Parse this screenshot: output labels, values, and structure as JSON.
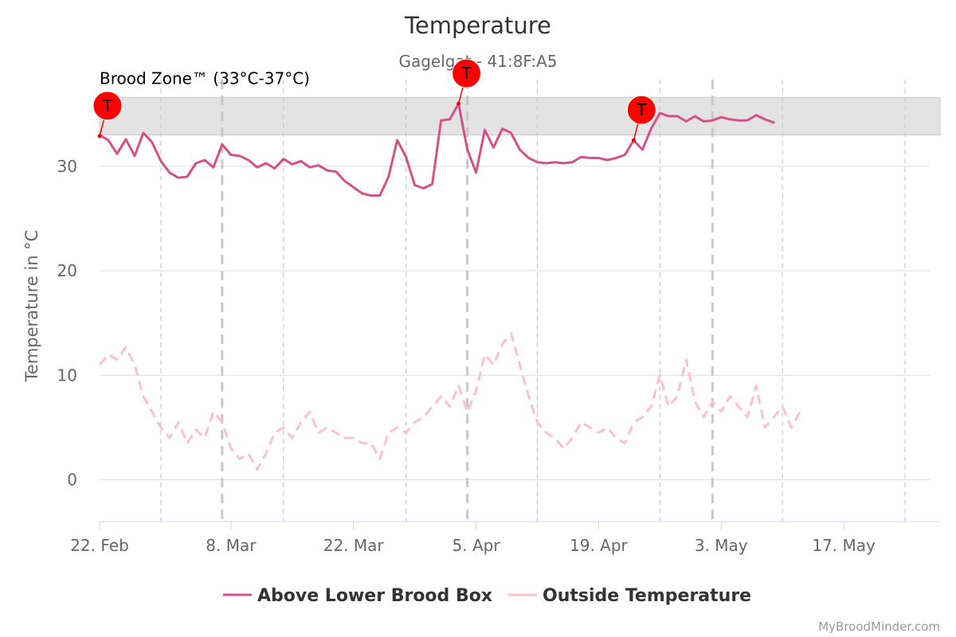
{
  "chart_data": {
    "type": "line",
    "title": "Temperature",
    "subtitle": "Gagelgat - 41:8F:A5",
    "ylabel": "Temperature in °C",
    "ylim": [
      -4,
      38.3
    ],
    "xlim": [
      "2024-02-22",
      "2024-05-28"
    ],
    "y_ticks": [
      0,
      10,
      20,
      30
    ],
    "x_ticks": [
      {
        "date": "2024-02-22",
        "label": "22. Feb"
      },
      {
        "date": "2024-03-08",
        "label": "8. Mar"
      },
      {
        "date": "2024-03-22",
        "label": "22. Mar"
      },
      {
        "date": "2024-04-05",
        "label": "5. Apr"
      },
      {
        "date": "2024-04-19",
        "label": "19. Apr"
      },
      {
        "date": "2024-05-03",
        "label": "3. May"
      },
      {
        "date": "2024-05-17",
        "label": "17. May"
      }
    ],
    "minor_grid_dates": [
      "2024-02-29",
      "2024-03-14",
      "2024-03-28",
      "2024-04-12",
      "2024-04-26",
      "2024-05-10",
      "2024-05-24"
    ],
    "dashed_grid_dates": [
      "2024-03-07",
      "2024-04-04",
      "2024-05-02"
    ],
    "band": {
      "from": 33,
      "to": 36.6,
      "label": "Brood Zone™ (33°C-37°C)",
      "color": "#e3e3e3"
    },
    "grid": true,
    "legend_position": "bottom-center",
    "series": [
      {
        "name": "Above Lower Brood Box",
        "color": "#d4508a",
        "style": "solid",
        "points": [
          [
            "2024-02-22",
            33.0
          ],
          [
            "2024-02-23",
            32.5
          ],
          [
            "2024-02-24",
            31.2
          ],
          [
            "2024-02-25",
            32.6
          ],
          [
            "2024-02-26",
            31.0
          ],
          [
            "2024-02-27",
            33.2
          ],
          [
            "2024-02-28",
            32.3
          ],
          [
            "2024-02-29",
            30.5
          ],
          [
            "2024-03-01",
            29.4
          ],
          [
            "2024-03-02",
            28.9
          ],
          [
            "2024-03-03",
            29.0
          ],
          [
            "2024-03-04",
            30.3
          ],
          [
            "2024-03-05",
            30.6
          ],
          [
            "2024-03-06",
            29.9
          ],
          [
            "2024-03-07",
            32.1
          ],
          [
            "2024-03-08",
            31.1
          ],
          [
            "2024-03-09",
            31.0
          ],
          [
            "2024-03-10",
            30.6
          ],
          [
            "2024-03-11",
            29.9
          ],
          [
            "2024-03-12",
            30.3
          ],
          [
            "2024-03-13",
            29.8
          ],
          [
            "2024-03-14",
            30.7
          ],
          [
            "2024-03-15",
            30.2
          ],
          [
            "2024-03-16",
            30.5
          ],
          [
            "2024-03-17",
            29.9
          ],
          [
            "2024-03-18",
            30.1
          ],
          [
            "2024-03-19",
            29.6
          ],
          [
            "2024-03-20",
            29.5
          ],
          [
            "2024-03-21",
            28.6
          ],
          [
            "2024-03-22",
            28.0
          ],
          [
            "2024-03-23",
            27.4
          ],
          [
            "2024-03-24",
            27.2
          ],
          [
            "2024-03-25",
            27.2
          ],
          [
            "2024-03-26",
            29.0
          ],
          [
            "2024-03-27",
            32.5
          ],
          [
            "2024-03-28",
            30.9
          ],
          [
            "2024-03-29",
            28.2
          ],
          [
            "2024-03-30",
            27.9
          ],
          [
            "2024-03-31",
            28.3
          ],
          [
            "2024-04-01",
            34.4
          ],
          [
            "2024-04-02",
            34.5
          ],
          [
            "2024-04-03",
            36.0
          ],
          [
            "2024-04-04",
            31.6
          ],
          [
            "2024-04-05",
            29.4
          ],
          [
            "2024-04-06",
            33.5
          ],
          [
            "2024-04-07",
            31.8
          ],
          [
            "2024-04-08",
            33.6
          ],
          [
            "2024-04-09",
            33.2
          ],
          [
            "2024-04-10",
            31.6
          ],
          [
            "2024-04-11",
            30.8
          ],
          [
            "2024-04-12",
            30.4
          ],
          [
            "2024-04-13",
            30.3
          ],
          [
            "2024-04-14",
            30.4
          ],
          [
            "2024-04-15",
            30.3
          ],
          [
            "2024-04-16",
            30.4
          ],
          [
            "2024-04-17",
            30.9
          ],
          [
            "2024-04-18",
            30.8
          ],
          [
            "2024-04-19",
            30.8
          ],
          [
            "2024-04-20",
            30.6
          ],
          [
            "2024-04-21",
            30.8
          ],
          [
            "2024-04-22",
            31.1
          ],
          [
            "2024-04-23",
            32.5
          ],
          [
            "2024-04-24",
            31.6
          ],
          [
            "2024-04-25",
            33.6
          ],
          [
            "2024-04-26",
            35.1
          ],
          [
            "2024-04-27",
            34.8
          ],
          [
            "2024-04-28",
            34.8
          ],
          [
            "2024-04-29",
            34.3
          ],
          [
            "2024-04-30",
            34.8
          ],
          [
            "2024-05-01",
            34.3
          ],
          [
            "2024-05-02",
            34.4
          ],
          [
            "2024-05-03",
            34.7
          ],
          [
            "2024-05-04",
            34.5
          ],
          [
            "2024-05-05",
            34.4
          ],
          [
            "2024-05-06",
            34.4
          ],
          [
            "2024-05-07",
            34.9
          ],
          [
            "2024-05-08",
            34.5
          ],
          [
            "2024-05-09",
            34.2
          ]
        ]
      },
      {
        "name": "Outside Temperature",
        "color": "#ffc0cb",
        "style": "dash",
        "points": [
          [
            "2024-02-22",
            11.0
          ],
          [
            "2024-02-23",
            12.0
          ],
          [
            "2024-02-24",
            11.5
          ],
          [
            "2024-02-25",
            12.7
          ],
          [
            "2024-02-26",
            11.0
          ],
          [
            "2024-02-27",
            8.0
          ],
          [
            "2024-02-28",
            6.5
          ],
          [
            "2024-02-29",
            5.0
          ],
          [
            "2024-03-01",
            4.0
          ],
          [
            "2024-03-02",
            5.5
          ],
          [
            "2024-03-03",
            3.5
          ],
          [
            "2024-03-04",
            4.8
          ],
          [
            "2024-03-05",
            4.0
          ],
          [
            "2024-03-06",
            6.5
          ],
          [
            "2024-03-07",
            5.5
          ],
          [
            "2024-03-08",
            3.0
          ],
          [
            "2024-03-09",
            2.0
          ],
          [
            "2024-03-10",
            2.5
          ],
          [
            "2024-03-11",
            1.0
          ],
          [
            "2024-03-12",
            2.5
          ],
          [
            "2024-03-13",
            4.5
          ],
          [
            "2024-03-14",
            5.0
          ],
          [
            "2024-03-15",
            4.0
          ],
          [
            "2024-03-16",
            5.5
          ],
          [
            "2024-03-17",
            6.5
          ],
          [
            "2024-03-18",
            4.5
          ],
          [
            "2024-03-19",
            5.0
          ],
          [
            "2024-03-20",
            4.5
          ],
          [
            "2024-03-21",
            4.0
          ],
          [
            "2024-03-22",
            4.0
          ],
          [
            "2024-03-23",
            3.5
          ],
          [
            "2024-03-24",
            3.5
          ],
          [
            "2024-03-25",
            2.0
          ],
          [
            "2024-03-26",
            4.5
          ],
          [
            "2024-03-27",
            5.0
          ],
          [
            "2024-03-28",
            4.5
          ],
          [
            "2024-03-29",
            5.5
          ],
          [
            "2024-03-30",
            6.0
          ],
          [
            "2024-03-31",
            7.0
          ],
          [
            "2024-04-01",
            8.0
          ],
          [
            "2024-04-02",
            7.0
          ],
          [
            "2024-04-03",
            9.0
          ],
          [
            "2024-04-04",
            6.5
          ],
          [
            "2024-04-05",
            8.5
          ],
          [
            "2024-04-06",
            12.0
          ],
          [
            "2024-04-07",
            11.0
          ],
          [
            "2024-04-08",
            13.0
          ],
          [
            "2024-04-09",
            14.0
          ],
          [
            "2024-04-10",
            11.0
          ],
          [
            "2024-04-11",
            8.0
          ],
          [
            "2024-04-12",
            5.5
          ],
          [
            "2024-04-13",
            4.5
          ],
          [
            "2024-04-14",
            4.0
          ],
          [
            "2024-04-15",
            3.0
          ],
          [
            "2024-04-16",
            4.0
          ],
          [
            "2024-04-17",
            5.5
          ],
          [
            "2024-04-18",
            5.0
          ],
          [
            "2024-04-19",
            4.5
          ],
          [
            "2024-04-20",
            5.0
          ],
          [
            "2024-04-21",
            4.0
          ],
          [
            "2024-04-22",
            3.5
          ],
          [
            "2024-04-23",
            5.5
          ],
          [
            "2024-04-24",
            6.0
          ],
          [
            "2024-04-25",
            7.0
          ],
          [
            "2024-04-26",
            10.0
          ],
          [
            "2024-04-27",
            7.0
          ],
          [
            "2024-04-28",
            8.0
          ],
          [
            "2024-04-29",
            11.5
          ],
          [
            "2024-04-30",
            7.5
          ],
          [
            "2024-05-01",
            6.0
          ],
          [
            "2024-05-02",
            7.5
          ],
          [
            "2024-05-03",
            6.5
          ],
          [
            "2024-05-04",
            8.0
          ],
          [
            "2024-05-05",
            7.0
          ],
          [
            "2024-05-06",
            6.0
          ],
          [
            "2024-05-07",
            9.0
          ],
          [
            "2024-05-08",
            5.0
          ],
          [
            "2024-05-09",
            6.0
          ],
          [
            "2024-05-10",
            7.0
          ],
          [
            "2024-05-11",
            5.0
          ],
          [
            "2024-05-12",
            6.5
          ]
        ]
      }
    ],
    "flags": [
      {
        "date": "2024-02-22",
        "value": 32.9,
        "text": "T"
      },
      {
        "date": "2024-04-03",
        "value": 36.0,
        "text": "T"
      },
      {
        "date": "2024-04-23",
        "value": 32.5,
        "text": "T"
      }
    ]
  },
  "legend": [
    "Above Lower Brood Box",
    "Outside Temperature"
  ],
  "credit": "MyBroodMinder.com"
}
